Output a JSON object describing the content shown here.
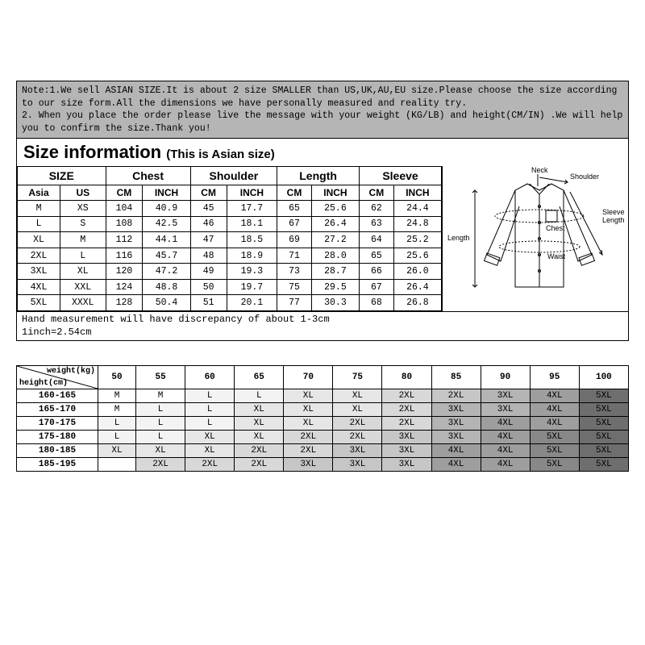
{
  "note": {
    "text": "Note:1.We sell ASIAN SIZE.It is about 2 size SMALLER than US,UK,AU,EU size.Please choose the size according to our size form.All the dimensions we have personally measured and reality try.\n2. When you place the order please live the message with your weight (KG/LB) and height(CM/IN) .We will help you to confirm the size.Thank you!"
  },
  "title": {
    "main": "Size information",
    "sub": "(This is Asian size)"
  },
  "size_table": {
    "group_headers": [
      "SIZE",
      "Chest",
      "Shoulder",
      "Length",
      "Sleeve"
    ],
    "sub_headers": [
      "Asia",
      "US",
      "CM",
      "INCH",
      "CM",
      "INCH",
      "CM",
      "INCH",
      "CM",
      "INCH"
    ],
    "rows": [
      [
        "M",
        "XS",
        "104",
        "40.9",
        "45",
        "17.7",
        "65",
        "25.6",
        "62",
        "24.4"
      ],
      [
        "L",
        "S",
        "108",
        "42.5",
        "46",
        "18.1",
        "67",
        "26.4",
        "63",
        "24.8"
      ],
      [
        "XL",
        "M",
        "112",
        "44.1",
        "47",
        "18.5",
        "69",
        "27.2",
        "64",
        "25.2"
      ],
      [
        "2XL",
        "L",
        "116",
        "45.7",
        "48",
        "18.9",
        "71",
        "28.0",
        "65",
        "25.6"
      ],
      [
        "3XL",
        "XL",
        "120",
        "47.2",
        "49",
        "19.3",
        "73",
        "28.7",
        "66",
        "26.0"
      ],
      [
        "4XL",
        "XXL",
        "124",
        "48.8",
        "50",
        "19.7",
        "75",
        "29.5",
        "67",
        "26.4"
      ],
      [
        "5XL",
        "XXXL",
        "128",
        "50.4",
        "51",
        "20.1",
        "77",
        "30.3",
        "68",
        "26.8"
      ]
    ]
  },
  "diagram_labels": {
    "neck": "Neck",
    "shoulder": "Shoulder",
    "sleeve": "Sleeve Length",
    "chest": "Chest",
    "waist": "Waist",
    "length": "Length"
  },
  "footnote": {
    "l1": "Hand measurement will have discrepancy of about 1-3cm",
    "l2": "1inch=2.54cm"
  },
  "rec": {
    "corner_weight": "weight(kg)",
    "corner_height": "height(cm)",
    "weights": [
      "50",
      "55",
      "60",
      "65",
      "70",
      "75",
      "80",
      "85",
      "90",
      "95",
      "100"
    ],
    "heights": [
      "160-165",
      "165-170",
      "170-175",
      "175-180",
      "180-185",
      "185-195"
    ],
    "cells": [
      [
        [
          "M",
          "g0"
        ],
        [
          "M",
          "g0"
        ],
        [
          "L",
          "g1"
        ],
        [
          "L",
          "g1"
        ],
        [
          "XL",
          "g2"
        ],
        [
          "XL",
          "g2"
        ],
        [
          "2XL",
          "g3"
        ],
        [
          "2XL",
          "g4"
        ],
        [
          "3XL",
          "g5"
        ],
        [
          "4XL",
          "g6"
        ],
        [
          "5XL",
          "g8"
        ]
      ],
      [
        [
          "M",
          "g0"
        ],
        [
          "L",
          "g1"
        ],
        [
          "L",
          "g1"
        ],
        [
          "XL",
          "g2"
        ],
        [
          "XL",
          "g2"
        ],
        [
          "XL",
          "g2"
        ],
        [
          "2XL",
          "g3"
        ],
        [
          "3XL",
          "g5"
        ],
        [
          "3XL",
          "g5"
        ],
        [
          "4XL",
          "g6"
        ],
        [
          "5XL",
          "g8"
        ]
      ],
      [
        [
          "L",
          "g1"
        ],
        [
          "L",
          "g1"
        ],
        [
          "L",
          "g1"
        ],
        [
          "XL",
          "g2"
        ],
        [
          "XL",
          "g2"
        ],
        [
          "2XL",
          "g3"
        ],
        [
          "2XL",
          "g3"
        ],
        [
          "3XL",
          "g5"
        ],
        [
          "4XL",
          "g6"
        ],
        [
          "4XL",
          "g6"
        ],
        [
          "5XL",
          "g8"
        ]
      ],
      [
        [
          "L",
          "g1"
        ],
        [
          "L",
          "g1"
        ],
        [
          "XL",
          "g2"
        ],
        [
          "XL",
          "g2"
        ],
        [
          "2XL",
          "g3"
        ],
        [
          "2XL",
          "g3"
        ],
        [
          "3XL",
          "g4"
        ],
        [
          "3XL",
          "g5"
        ],
        [
          "4XL",
          "g6"
        ],
        [
          "5XL",
          "g7"
        ],
        [
          "5XL",
          "g8"
        ]
      ],
      [
        [
          "XL",
          "g2"
        ],
        [
          "XL",
          "g2"
        ],
        [
          "XL",
          "g2"
        ],
        [
          "2XL",
          "g3"
        ],
        [
          "2XL",
          "g3"
        ],
        [
          "3XL",
          "g4"
        ],
        [
          "3XL",
          "g4"
        ],
        [
          "4XL",
          "g6"
        ],
        [
          "4XL",
          "g6"
        ],
        [
          "5XL",
          "g7"
        ],
        [
          "5XL",
          "g8"
        ]
      ],
      [
        [
          "",
          "g0"
        ],
        [
          "2XL",
          "g3"
        ],
        [
          "2XL",
          "g3"
        ],
        [
          "2XL",
          "g3"
        ],
        [
          "3XL",
          "g4"
        ],
        [
          "3XL",
          "g4"
        ],
        [
          "3XL",
          "g4"
        ],
        [
          "4XL",
          "g6"
        ],
        [
          "4XL",
          "g6"
        ],
        [
          "5XL",
          "g7"
        ],
        [
          "5XL",
          "g8"
        ]
      ]
    ]
  }
}
